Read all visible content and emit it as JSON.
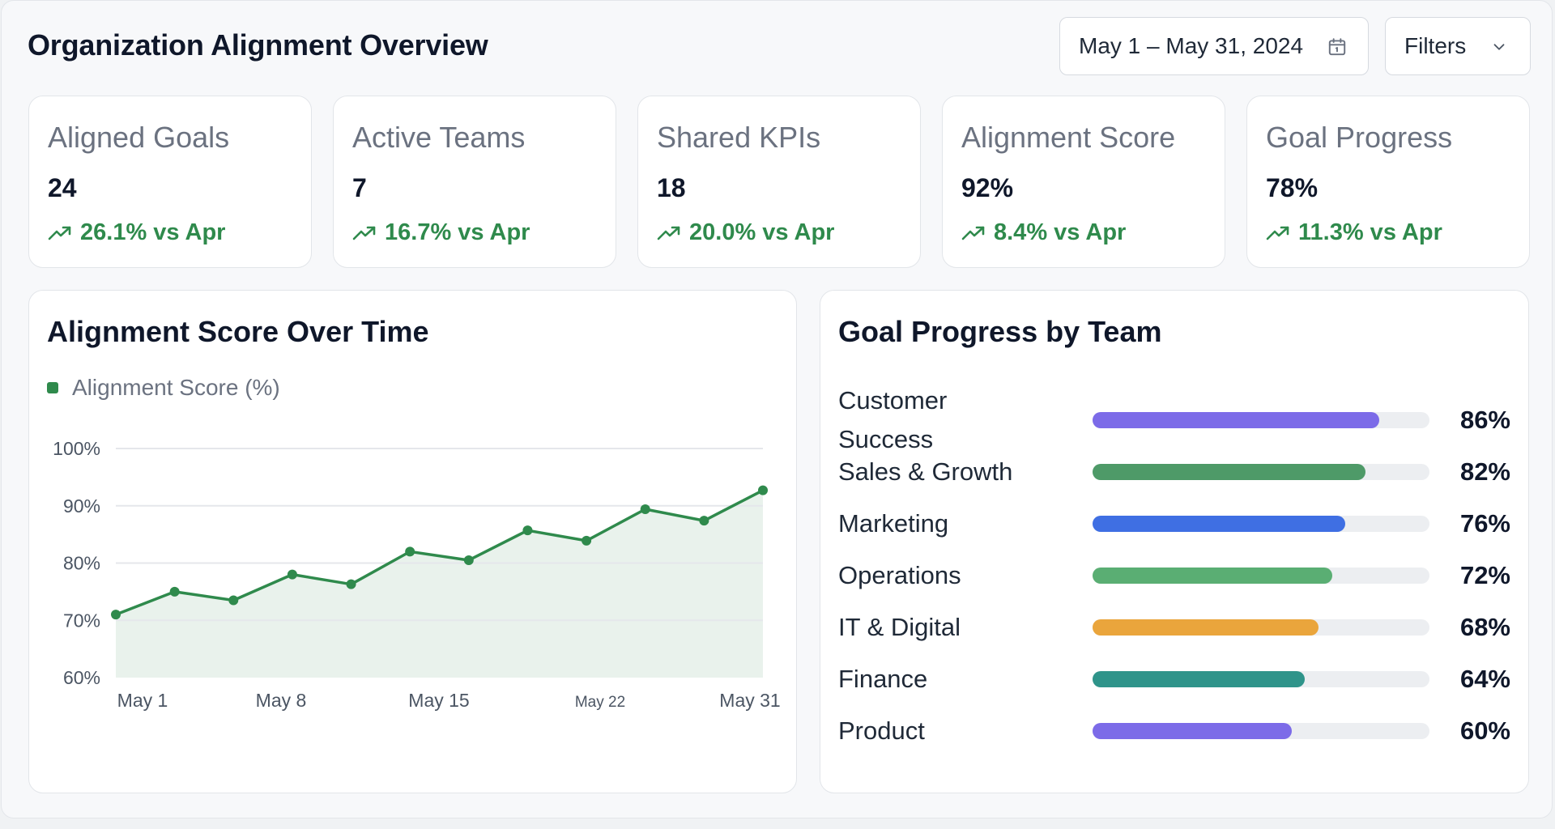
{
  "header": {
    "title": "Organization Alignment Overview",
    "date_range": "May 1 – May 31, 2024",
    "filters_label": "Filters"
  },
  "kpis": [
    {
      "label": "Aligned Goals",
      "value": "24",
      "delta": "26.1% vs Apr"
    },
    {
      "label": "Active Teams",
      "value": "7",
      "delta": "16.7% vs Apr"
    },
    {
      "label": "Shared KPIs",
      "value": "18",
      "delta": "20.0% vs Apr"
    },
    {
      "label": "Alignment Score",
      "value": "92%",
      "delta": "8.4% vs Apr"
    },
    {
      "label": "Goal Progress",
      "value": "78%",
      "delta": "11.3% vs Apr"
    }
  ],
  "colors": {
    "positive": "#2f8a4c",
    "line": "#2f8a4c",
    "area": "#e9f2ec"
  },
  "chart_data": {
    "type": "line",
    "title": "Alignment Score Over Time",
    "legend_position": "top-left",
    "grid": true,
    "series": [
      {
        "name": "Alignment Score (%)",
        "points": [
          {
            "x": "2024-05-01",
            "y": 71
          },
          {
            "x": "2024-05-04",
            "y": 75
          },
          {
            "x": "2024-05-07",
            "y": 73.5
          },
          {
            "x": "2024-05-10",
            "y": 78
          },
          {
            "x": "2024-05-13",
            "y": 76.3
          },
          {
            "x": "2024-05-16",
            "y": 82
          },
          {
            "x": "2024-05-19",
            "y": 80.5
          },
          {
            "x": "2024-05-22",
            "y": 85.7
          },
          {
            "x": "2024-05-25",
            "y": 83.9
          },
          {
            "x": "2024-05-28",
            "y": 89.4
          },
          {
            "x": "2024-05-31",
            "y": 87.4
          },
          {
            "x": "2024-06-03",
            "y": 92.7
          }
        ]
      }
    ],
    "y_ticks": [
      "100%",
      "90%",
      "80%",
      "70%",
      "60%"
    ],
    "x_ticks": [
      "May 1",
      "May 8",
      "May 15",
      "May 22",
      "May 31"
    ],
    "ylim": [
      60,
      100
    ]
  },
  "team_progress": {
    "title": "Goal Progress by Team",
    "teams": [
      {
        "label_lines": [
          "Customer",
          "Success"
        ],
        "pct_value": 86,
        "pct": "86%",
        "color": "#7c6be8"
      },
      {
        "label_lines": [
          "Sales & Growth"
        ],
        "pct_value": 82,
        "pct": "82%",
        "color": "#4e9a68"
      },
      {
        "label_lines": [
          "Marketing"
        ],
        "pct_value": 76,
        "pct": "76%",
        "color": "#3f6fe3"
      },
      {
        "label_lines": [
          "Operations"
        ],
        "pct_value": 72,
        "pct": "72%",
        "color": "#5aae73"
      },
      {
        "label_lines": [
          "IT & Digital"
        ],
        "pct_value": 68,
        "pct": "68%",
        "color": "#eaa53c"
      },
      {
        "label_lines": [
          "Finance"
        ],
        "pct_value": 64,
        "pct": "64%",
        "color": "#2f948a"
      },
      {
        "label_lines": [
          "Product"
        ],
        "pct_value": 60,
        "pct": "60%",
        "color": "#7c6be8"
      }
    ]
  }
}
